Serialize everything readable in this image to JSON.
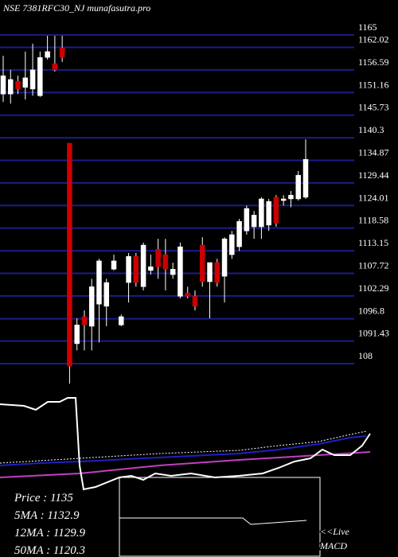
{
  "chart_data": {
    "type": "candlestick",
    "title": "NSE 7381RFC30_NJ munafasutra.pro",
    "up_color": "#ffffff",
    "down_color": "#cc0000",
    "grid": true,
    "grid_color": "#1c1c8a",
    "ylim": [
      1079.7,
      1173.4
    ],
    "yticks": [
      1165,
      1162.02,
      1156.59,
      1151.16,
      1145.73,
      1140.3,
      1134.87,
      1129.44,
      1124.01,
      1118.58,
      1113.15,
      1107.72,
      1102.29,
      1096.8,
      1091.43,
      {
        "value": 1086,
        "label": "108"
      }
    ],
    "open": [
      1150.8,
      1150.8,
      1153.9,
      1152.4,
      1152.0,
      1150.4,
      1159.6,
      1158.1,
      1161.9,
      1139.0,
      1090.8,
      1097.3,
      1095.0,
      1100.3,
      1099.8,
      1108.7,
      1095.3,
      1105.5,
      1111.8,
      1104.5,
      1108.4,
      1113.5,
      1112.2,
      1107.4,
      1102.2,
      1103.0,
      1102.2,
      1114.5,
      1105.7,
      1110.3,
      1107.0,
      1112.2,
      1114.1,
      1117.9,
      1118.9,
      1118.9,
      1119.3,
      1126.0,
      1125.2,
      1125.6,
      1125.6,
      1126.0
    ],
    "high": [
      1160.0,
      1156.6,
      1155.2,
      1161.0,
      1162.9,
      1161.0,
      1164.8,
      1164.8,
      1164.8,
      1139.0,
      1096.9,
      1098.8,
      1106.4,
      1111.2,
      1106.4,
      1112.2,
      1097.8,
      1112.6,
      1112.6,
      1115.1,
      1112.2,
      1116.0,
      1116.0,
      1110.3,
      1115.1,
      1104.5,
      1103.6,
      1116.4,
      1110.3,
      1111.2,
      1116.4,
      1117.9,
      1120.8,
      1124.0,
      1122.7,
      1126.0,
      1125.6,
      1126.5,
      1126.5,
      1127.5,
      1132.3,
      1139.9
    ],
    "low": [
      1148.9,
      1148.5,
      1150.8,
      1149.5,
      1150.4,
      1150.1,
      1159.1,
      1156.2,
      1158.5,
      1081.2,
      1089.2,
      1089.2,
      1089.2,
      1091.1,
      1095.0,
      1108.4,
      1095.0,
      1100.7,
      1104.5,
      1103.6,
      1107.4,
      1106.4,
      1103.6,
      1106.4,
      1101.7,
      1101.7,
      1098.8,
      1104.5,
      1096.9,
      1104.5,
      1100.7,
      1111.2,
      1113.1,
      1117.0,
      1116.0,
      1116.0,
      1117.9,
      1118.9,
      1124.0,
      1123.6,
      1125.2,
      1125.6
    ],
    "close": [
      1155.2,
      1154.3,
      1152.0,
      1154.7,
      1156.6,
      1159.6,
      1161.0,
      1156.6,
      1159.6,
      1085.4,
      1095.3,
      1095.3,
      1104.5,
      1110.7,
      1105.5,
      1110.7,
      1097.3,
      1111.8,
      1105.5,
      1114.5,
      1109.3,
      1109.3,
      1108.7,
      1108.7,
      1114.1,
      1102.2,
      1099.8,
      1105.7,
      1110.3,
      1105.5,
      1116.0,
      1117.0,
      1120.2,
      1123.3,
      1121.7,
      1125.6,
      1125.0,
      1119.8,
      1125.6,
      1126.5,
      1131.3,
      1135.1
    ],
    "info": [
      "Price   : 1135",
      "5MA : 1132.9",
      "12MA : 1129.9",
      "50MA : 1120.3"
    ],
    "macd_label": [
      "<<Live",
      "MACD"
    ]
  }
}
